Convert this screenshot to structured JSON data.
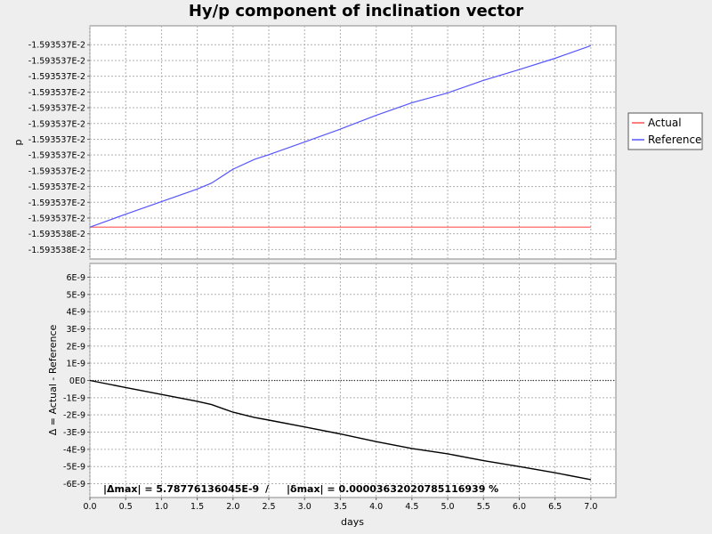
{
  "chart_data": {
    "type": "line",
    "title": "Hy/p component of inclination vector",
    "xlabel": "days",
    "x_ticks": [
      "0.0",
      "0.5",
      "1.0",
      "1.5",
      "2.0",
      "2.5",
      "3.0",
      "3.5",
      "4.0",
      "4.5",
      "5.0",
      "5.5",
      "6.0",
      "6.5",
      "7.0"
    ],
    "xlim": [
      0.0,
      7.35
    ],
    "grid": true,
    "legend_position": "right",
    "top_panel": {
      "ylabel": "p",
      "y_ticks": [
        "-1.593537E-2",
        "-1.593537E-2",
        "-1.593537E-2",
        "-1.593537E-2",
        "-1.593537E-2",
        "-1.593537E-2",
        "-1.593537E-2",
        "-1.593537E-2",
        "-1.593537E-2",
        "-1.593537E-2",
        "-1.593537E-2",
        "-1.593537E-2",
        "-1.593538E-2",
        "-1.593538E-2"
      ],
      "ylim_units_e9": [
        -6.8,
        0.6
      ],
      "series": [
        {
          "name": "Actual",
          "color": "#ff5555",
          "x": [
            0.0,
            7.0
          ],
          "y_offset_e9": [
            -5.788,
            -5.788
          ]
        },
        {
          "name": "Reference",
          "color": "#5555ff",
          "x": [
            0.0,
            0.5,
            1.0,
            1.5,
            1.7,
            2.0,
            2.3,
            2.5,
            3.0,
            3.5,
            4.0,
            4.5,
            5.0,
            5.5,
            6.0,
            6.5,
            7.0
          ],
          "y_offset_e9": [
            -5.788,
            -5.38,
            -4.98,
            -4.58,
            -4.39,
            -3.95,
            -3.64,
            -3.49,
            -3.09,
            -2.68,
            -2.24,
            -1.84,
            -1.53,
            -1.13,
            -0.79,
            -0.43,
            -0.03
          ]
        }
      ]
    },
    "bottom_panel": {
      "ylabel": "Δ = Actual - Reference",
      "y_ticks": [
        "6E-9",
        "5E-9",
        "4E-9",
        "3E-9",
        "2E-9",
        "1E-9",
        "0E0",
        "-1E-9",
        "-2E-9",
        "-3E-9",
        "-4E-9",
        "-5E-9",
        "-6E-9"
      ],
      "ylim": [
        -6.8e-09,
        6.8e-09
      ],
      "series": [
        {
          "name": "Δ",
          "color": "#000000",
          "x": [
            0.0,
            0.5,
            1.0,
            1.5,
            1.7,
            2.0,
            2.3,
            2.5,
            3.0,
            3.5,
            4.0,
            4.5,
            5.0,
            5.5,
            6.0,
            6.5,
            7.0
          ],
          "y": [
            0,
            -4.1e-10,
            -8.1e-10,
            -1.21e-09,
            -1.4e-09,
            -1.84e-09,
            -2.15e-09,
            -2.3e-09,
            -2.7e-09,
            -3.11e-09,
            -3.55e-09,
            -3.95e-09,
            -4.26e-09,
            -4.66e-09,
            -5e-09,
            -5.36e-09,
            -5.76e-09
          ]
        }
      ],
      "stats": {
        "delta_label": "|Δmax| = 5.78776136045E-9",
        "separator": "/",
        "rel_label": "|δmax| = 0.00003632020785116939 %"
      }
    }
  }
}
